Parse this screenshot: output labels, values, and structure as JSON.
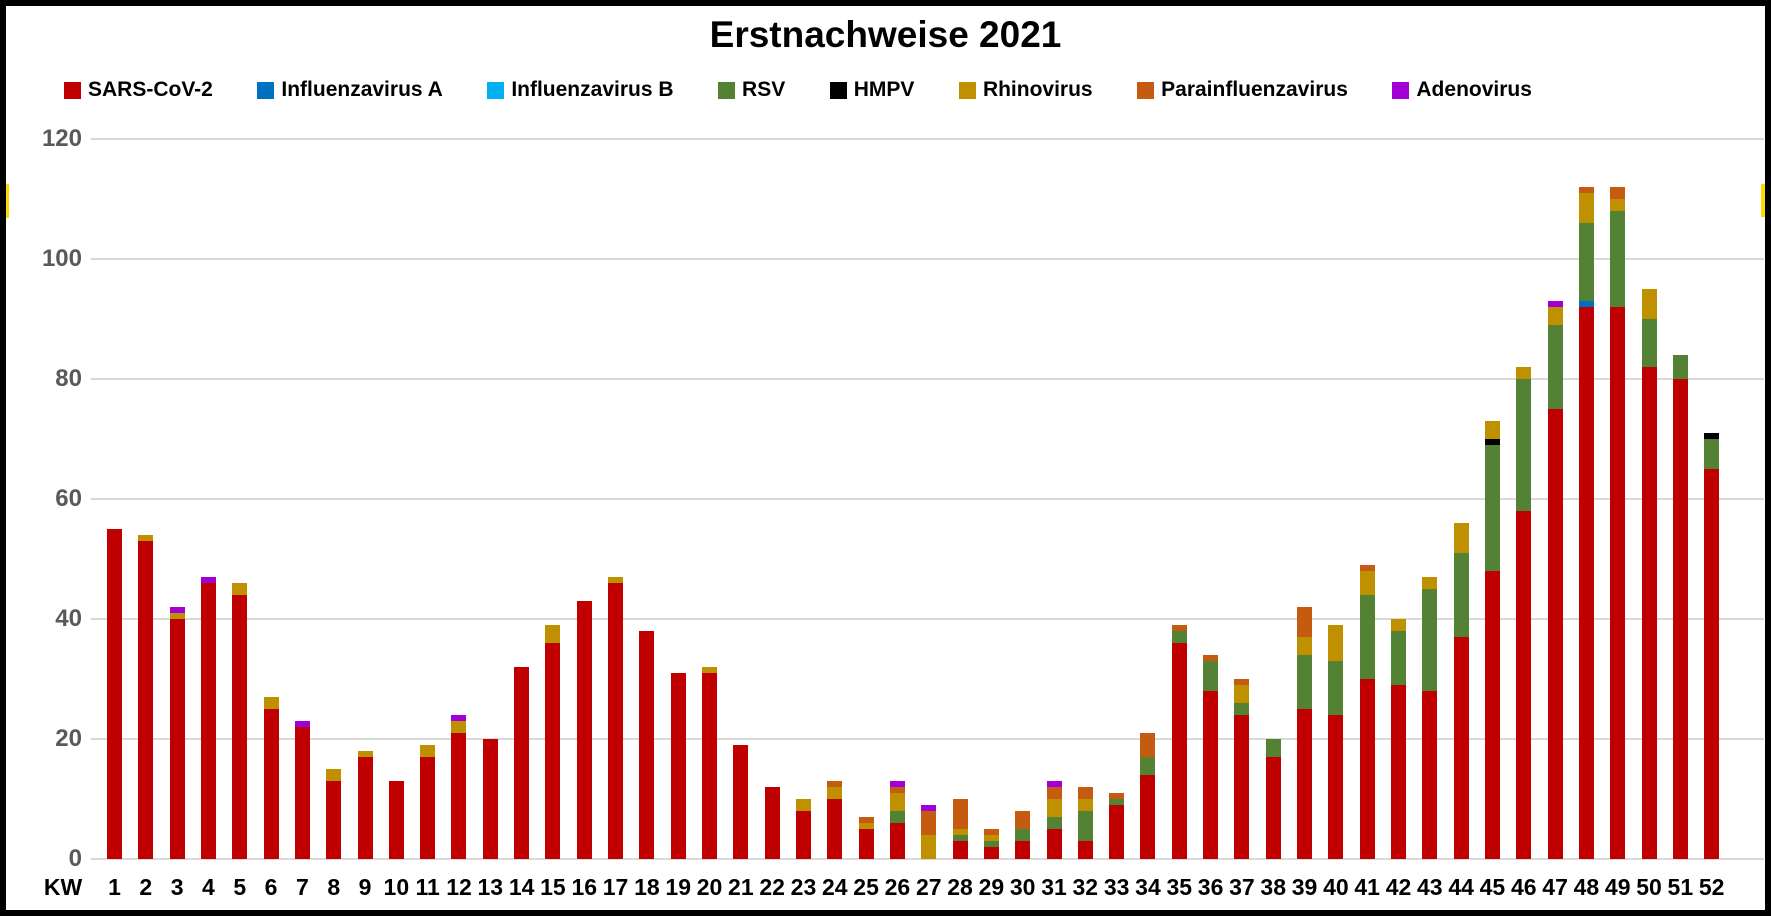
{
  "chart_data": {
    "type": "bar",
    "stacked": true,
    "title": "Erstnachweise 2021",
    "x_prefix_label": "KW",
    "xlabel": "",
    "ylabel": "",
    "ylim": [
      0,
      120
    ],
    "yticks": [
      0,
      20,
      40,
      60,
      80,
      100,
      120
    ],
    "grid": true,
    "legend_position": "top",
    "categories": [
      "1",
      "2",
      "3",
      "4",
      "5",
      "6",
      "7",
      "8",
      "9",
      "10",
      "11",
      "12",
      "13",
      "14",
      "15",
      "16",
      "17",
      "18",
      "19",
      "20",
      "21",
      "22",
      "23",
      "24",
      "25",
      "26",
      "27",
      "28",
      "29",
      "30",
      "31",
      "32",
      "33",
      "34",
      "35",
      "36",
      "37",
      "38",
      "39",
      "40",
      "41",
      "42",
      "43",
      "44",
      "45",
      "46",
      "47",
      "48",
      "49",
      "50",
      "51",
      "52"
    ],
    "series": [
      {
        "name": "SARS-CoV-2",
        "color": "#c00000",
        "values": [
          55,
          53,
          40,
          46,
          44,
          25,
          22,
          13,
          17,
          13,
          17,
          21,
          20,
          32,
          36,
          43,
          46,
          38,
          31,
          31,
          19,
          12,
          8,
          10,
          5,
          6,
          0,
          3,
          2,
          3,
          5,
          3,
          9,
          14,
          36,
          28,
          24,
          17,
          25,
          24,
          30,
          29,
          28,
          37,
          48,
          58,
          75,
          92,
          92,
          82,
          80,
          65
        ]
      },
      {
        "name": "Influenzavirus A",
        "color": "#0070c0",
        "values": [
          0,
          0,
          0,
          0,
          0,
          0,
          0,
          0,
          0,
          0,
          0,
          0,
          0,
          0,
          0,
          0,
          0,
          0,
          0,
          0,
          0,
          0,
          0,
          0,
          0,
          0,
          0,
          0,
          0,
          0,
          0,
          0,
          0,
          0,
          0,
          0,
          0,
          0,
          0,
          0,
          0,
          0,
          0,
          0,
          0,
          0,
          0,
          1,
          0,
          0,
          0,
          0
        ]
      },
      {
        "name": "Influenzavirus B",
        "color": "#00b0f0",
        "values": [
          0,
          0,
          0,
          0,
          0,
          0,
          0,
          0,
          0,
          0,
          0,
          0,
          0,
          0,
          0,
          0,
          0,
          0,
          0,
          0,
          0,
          0,
          0,
          0,
          0,
          0,
          0,
          0,
          0,
          0,
          0,
          0,
          0,
          0,
          0,
          0,
          0,
          0,
          0,
          0,
          0,
          0,
          0,
          0,
          0,
          0,
          0,
          0,
          0,
          0,
          0,
          0
        ]
      },
      {
        "name": "RSV",
        "color": "#548235",
        "values": [
          0,
          0,
          0,
          0,
          0,
          0,
          0,
          0,
          0,
          0,
          0,
          0,
          0,
          0,
          0,
          0,
          0,
          0,
          0,
          0,
          0,
          0,
          0,
          0,
          0,
          2,
          0,
          1,
          1,
          2,
          2,
          5,
          1,
          3,
          2,
          5,
          2,
          3,
          9,
          9,
          14,
          9,
          17,
          14,
          21,
          22,
          14,
          13,
          16,
          8,
          4,
          5
        ]
      },
      {
        "name": "HMPV",
        "color": "#000000",
        "values": [
          0,
          0,
          0,
          0,
          0,
          0,
          0,
          0,
          0,
          0,
          0,
          0,
          0,
          0,
          0,
          0,
          0,
          0,
          0,
          0,
          0,
          0,
          0,
          0,
          0,
          0,
          0,
          0,
          0,
          0,
          0,
          0,
          0,
          0,
          0,
          0,
          0,
          0,
          0,
          0,
          0,
          0,
          0,
          0,
          1,
          0,
          0,
          0,
          0,
          0,
          0,
          1
        ]
      },
      {
        "name": "Rhinovirus",
        "color": "#bf9000",
        "values": [
          0,
          1,
          1,
          0,
          2,
          2,
          0,
          2,
          1,
          0,
          2,
          2,
          0,
          0,
          3,
          0,
          1,
          0,
          0,
          1,
          0,
          0,
          2,
          2,
          1,
          3,
          4,
          1,
          1,
          0,
          3,
          2,
          0,
          0,
          0,
          0,
          3,
          0,
          3,
          6,
          4,
          2,
          2,
          5,
          3,
          2,
          3,
          5,
          2,
          5,
          0,
          0
        ]
      },
      {
        "name": "Parainfluenzavirus",
        "color": "#c55a11",
        "values": [
          0,
          0,
          0,
          0,
          0,
          0,
          0,
          0,
          0,
          0,
          0,
          0,
          0,
          0,
          0,
          0,
          0,
          0,
          0,
          0,
          0,
          0,
          0,
          1,
          1,
          1,
          4,
          5,
          1,
          3,
          2,
          2,
          1,
          4,
          1,
          1,
          1,
          0,
          5,
          0,
          1,
          0,
          0,
          0,
          0,
          0,
          0,
          1,
          2,
          0,
          0,
          0
        ]
      },
      {
        "name": "Adenovirus",
        "color": "#a000d6",
        "values": [
          0,
          0,
          1,
          1,
          0,
          0,
          1,
          0,
          0,
          0,
          0,
          1,
          0,
          0,
          0,
          0,
          0,
          0,
          0,
          0,
          0,
          0,
          0,
          0,
          0,
          1,
          1,
          0,
          0,
          0,
          1,
          0,
          0,
          0,
          0,
          0,
          0,
          0,
          0,
          0,
          0,
          0,
          0,
          0,
          0,
          0,
          1,
          0,
          0,
          0,
          0,
          0
        ]
      }
    ]
  }
}
